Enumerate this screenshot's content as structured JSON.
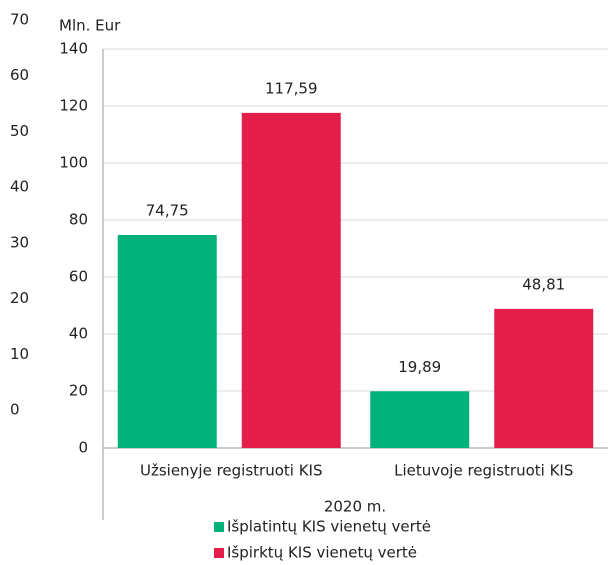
{
  "chart_data": {
    "type": "bar",
    "y_axis_label": "Mln. Eur",
    "x_axis_label": "2020 m.",
    "categories": [
      "Užsienyje registruoti KIS",
      "Lietuvoje registruoti KIS"
    ],
    "series": [
      {
        "name": "Išplatintų KIS vienetų vertė",
        "color": "#00b27a",
        "values": [
          74.75,
          19.89
        ],
        "value_labels": [
          "74,75",
          "19,89"
        ]
      },
      {
        "name": "Išpirktų KIS vienetų vertė",
        "color": "#e31e4a",
        "values": [
          117.59,
          48.81
        ],
        "value_labels": [
          "117,59",
          "48,81"
        ]
      }
    ],
    "ylim": [
      0,
      140
    ],
    "yticks": [
      0,
      20,
      40,
      60,
      80,
      100,
      120,
      140
    ],
    "y2lim": [
      0,
      70
    ],
    "y2ticks": [
      0,
      10,
      20,
      30,
      40,
      50,
      60,
      70
    ],
    "grid": true
  }
}
